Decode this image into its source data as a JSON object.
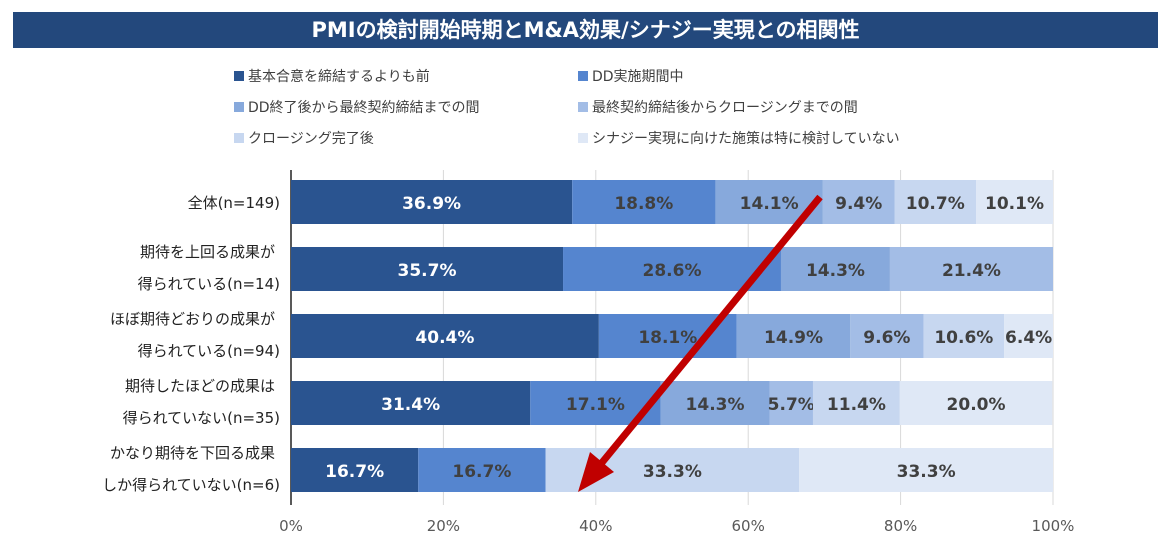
{
  "chart_data": {
    "type": "bar",
    "orientation": "horizontal-stacked-100",
    "title": "PMIの検討開始時期とM&A効果/シナジー実現との相関性",
    "legend": [
      {
        "name": "基本合意を締結するよりも前",
        "color": "#2a5490"
      },
      {
        "name": "DD実施期間中",
        "color": "#5585cf"
      },
      {
        "name": "DD終了後から最終契約締結までの間",
        "color": "#87a9dc"
      },
      {
        "name": "最終契約締結後からクロージングまでの間",
        "color": "#a3bde6"
      },
      {
        "name": "クロージング完了後",
        "color": "#c7d7f0"
      },
      {
        "name": "シナジー実現に向けた施策は特に検討していない",
        "color": "#dfe8f6"
      }
    ],
    "categories": [
      [
        "全体(n=149)"
      ],
      [
        "期待を上回る成果が",
        "得られている(n=14)"
      ],
      [
        "ほぼ期待どおりの成果が",
        "得られている(n=94)"
      ],
      [
        "期待したほどの成果は",
        "得られていない(n=35)"
      ],
      [
        "かなり期待を下回る成果",
        "しか得られていない(n=6)"
      ]
    ],
    "values": [
      [
        36.9,
        18.8,
        14.1,
        9.4,
        10.7,
        10.1
      ],
      [
        35.7,
        28.6,
        14.3,
        21.4,
        0,
        0
      ],
      [
        40.4,
        18.1,
        14.9,
        9.6,
        10.6,
        6.4
      ],
      [
        31.4,
        17.1,
        14.3,
        5.7,
        11.4,
        20.0
      ],
      [
        16.7,
        16.7,
        0,
        0,
        33.3,
        33.3
      ]
    ],
    "xlim": [
      0,
      100
    ],
    "xticks": [
      "0%",
      "20%",
      "40%",
      "60%",
      "80%",
      "100%"
    ],
    "grid": true,
    "legend_position": "top",
    "annotation": "red arrow pointing down-left"
  }
}
